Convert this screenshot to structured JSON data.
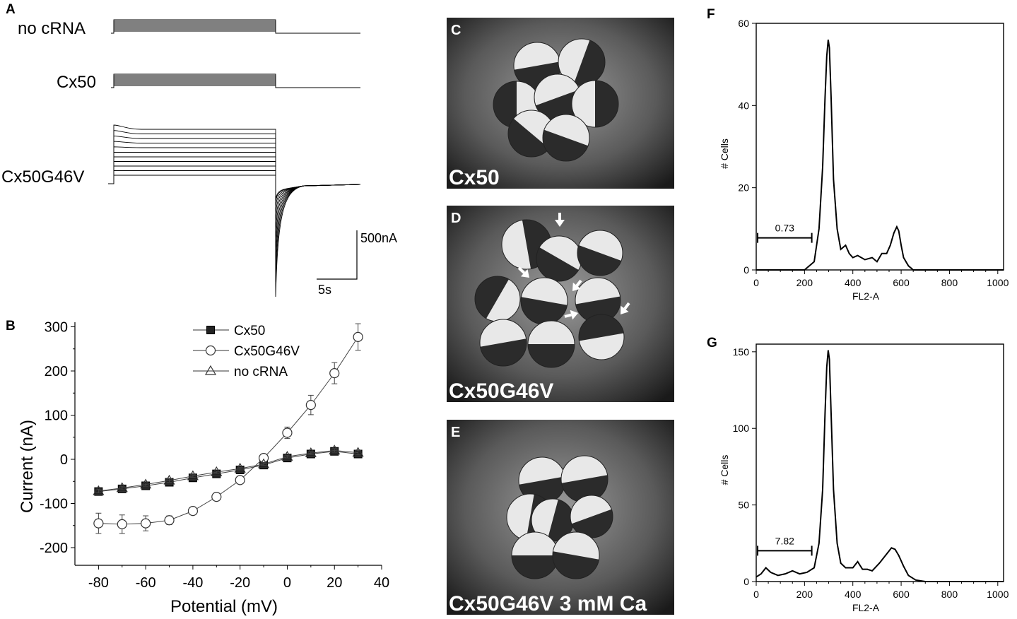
{
  "panels": {
    "A": "A",
    "B": "B",
    "C": "C",
    "D": "D",
    "E": "E",
    "F": "F",
    "G": "G"
  },
  "panel_a": {
    "trace_labels": [
      "no cRNA",
      "Cx50",
      "Cx50G46V"
    ],
    "scale_current": "500nA",
    "scale_time": "5s"
  },
  "photos": {
    "c_label": "Cx50",
    "d_label": "Cx50G46V",
    "e_label": "Cx50G46V 3 mM Ca"
  },
  "chart_data": [
    {
      "panel": "B",
      "type": "line",
      "xlabel": "Potential (mV)",
      "ylabel": "Current (nA)",
      "xlim": [
        -90,
        40
      ],
      "ylim": [
        -240,
        320
      ],
      "x_ticks": [
        "-80",
        "-60",
        "-40",
        "-20",
        "0",
        "20",
        "40"
      ],
      "y_ticks": [
        "300",
        "200",
        "100",
        "0",
        "-100",
        "-200"
      ],
      "legend": "top-center",
      "x": [
        -80,
        -70,
        -60,
        -50,
        -40,
        -30,
        -20,
        -10,
        0,
        10,
        20,
        30
      ],
      "series": [
        {
          "name": "Cx50",
          "marker": "filled-square",
          "values": [
            -73,
            -67,
            -60,
            -52,
            -42,
            -33,
            -24,
            -13,
            3,
            12,
            18,
            12
          ],
          "errors": [
            4,
            4,
            4,
            4,
            3,
            3,
            3,
            3,
            3,
            3,
            4,
            5
          ]
        },
        {
          "name": "Cx50G46V",
          "marker": "open-circle",
          "values": [
            -145,
            -147,
            -145,
            -138,
            -117,
            -85,
            -47,
            3,
            60,
            123,
            195,
            277
          ],
          "errors": [
            23,
            21,
            17,
            10,
            6,
            6,
            4,
            8,
            13,
            22,
            24,
            30
          ]
        },
        {
          "name": "no cRNA",
          "marker": "open-triangle",
          "values": [
            -72,
            -65,
            -57,
            -48,
            -38,
            -29,
            -21,
            -11,
            6,
            14,
            20,
            15
          ],
          "errors": [
            4,
            4,
            4,
            4,
            3,
            3,
            3,
            3,
            3,
            3,
            4,
            5
          ]
        }
      ]
    },
    {
      "panel": "F",
      "type": "line",
      "xlabel": "FL2-A",
      "ylabel": "# Cells",
      "xlim": [
        0,
        1024
      ],
      "ylim": [
        0,
        60
      ],
      "x_ticks": [
        "0",
        "200",
        "400",
        "600",
        "800",
        "1000"
      ],
      "y_ticks": [
        "0",
        "20",
        "40",
        "60"
      ],
      "annotation": "0.73",
      "gate": [
        0,
        230
      ],
      "x": [
        0,
        100,
        200,
        240,
        260,
        275,
        285,
        292,
        298,
        303,
        310,
        320,
        335,
        350,
        370,
        385,
        400,
        420,
        450,
        480,
        500,
        520,
        540,
        555,
        570,
        582,
        590,
        600,
        610,
        630,
        650,
        680,
        720,
        1024
      ],
      "values": [
        0,
        0,
        0,
        2,
        10,
        25,
        42,
        52,
        56,
        54,
        42,
        22,
        10,
        5,
        6,
        4,
        3,
        3.5,
        2.5,
        3,
        2,
        4,
        4,
        6,
        9,
        10.5,
        9.5,
        6,
        3,
        1,
        0,
        0,
        0,
        0
      ]
    },
    {
      "panel": "G",
      "type": "line",
      "xlabel": "FL2-A",
      "ylabel": "# Cells",
      "xlim": [
        0,
        1024
      ],
      "ylim": [
        0,
        155
      ],
      "x_ticks": [
        "0",
        "200",
        "400",
        "600",
        "800",
        "1000"
      ],
      "y_ticks": [
        "0",
        "50",
        "100",
        "150"
      ],
      "annotation": "7.82",
      "gate": [
        0,
        230
      ],
      "x": [
        0,
        20,
        40,
        60,
        90,
        120,
        150,
        180,
        210,
        240,
        260,
        275,
        285,
        292,
        298,
        303,
        310,
        320,
        335,
        350,
        370,
        400,
        420,
        440,
        460,
        480,
        510,
        540,
        560,
        575,
        590,
        610,
        630,
        660,
        700,
        1024
      ],
      "values": [
        3,
        5,
        9,
        6,
        4,
        5,
        7,
        5,
        6,
        9,
        25,
        60,
        110,
        140,
        151,
        145,
        110,
        60,
        25,
        12,
        9,
        9,
        13,
        8,
        8,
        7,
        12,
        18,
        22,
        21,
        17,
        10,
        4,
        1,
        0,
        0
      ]
    }
  ]
}
